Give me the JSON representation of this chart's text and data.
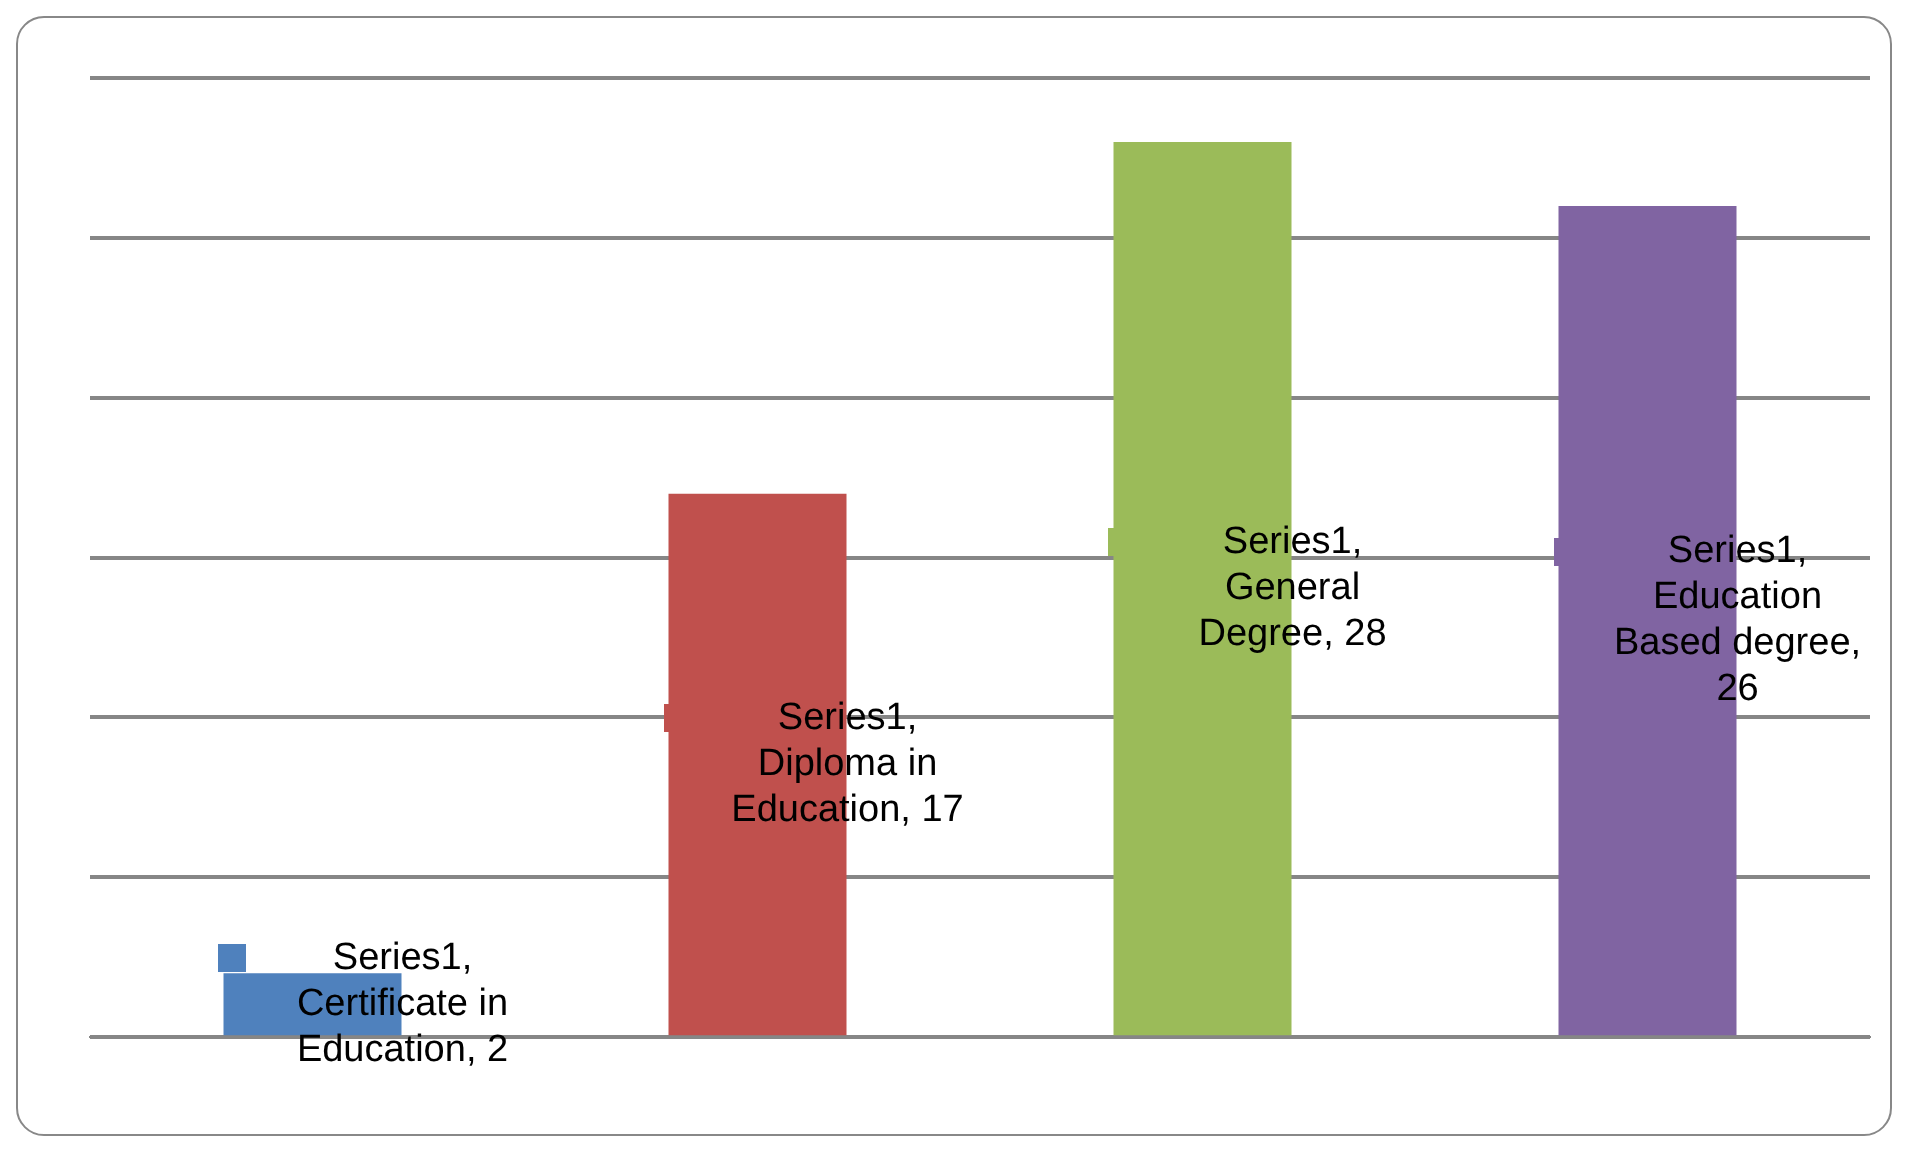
{
  "chart_data": {
    "type": "bar",
    "categories": [
      null,
      null,
      null,
      null
    ],
    "series": [
      {
        "values": [
          2,
          17,
          28,
          26
        ],
        "colors": [
          "#4f81bd",
          "#c0504d",
          "#9bbb59",
          "#8064a2"
        ],
        "value_labels": [
          "Series1, Certificate in Education, 2",
          "Series1, Diploma in Education, 17",
          "Series1, General Degree, 28",
          "Series1, Education Based degree, 26"
        ]
      }
    ],
    "ylim": [
      0,
      30
    ],
    "yticks": [
      {
        "value": 0,
        "label": null
      },
      {
        "value": 5,
        "label": null
      },
      {
        "value": 10,
        "label": null
      },
      {
        "value": 15,
        "label": null
      },
      {
        "value": 20,
        "label": null
      },
      {
        "value": 25,
        "label": null
      },
      {
        "value": 30,
        "label": null
      }
    ],
    "grid": "y",
    "legend": false
  }
}
